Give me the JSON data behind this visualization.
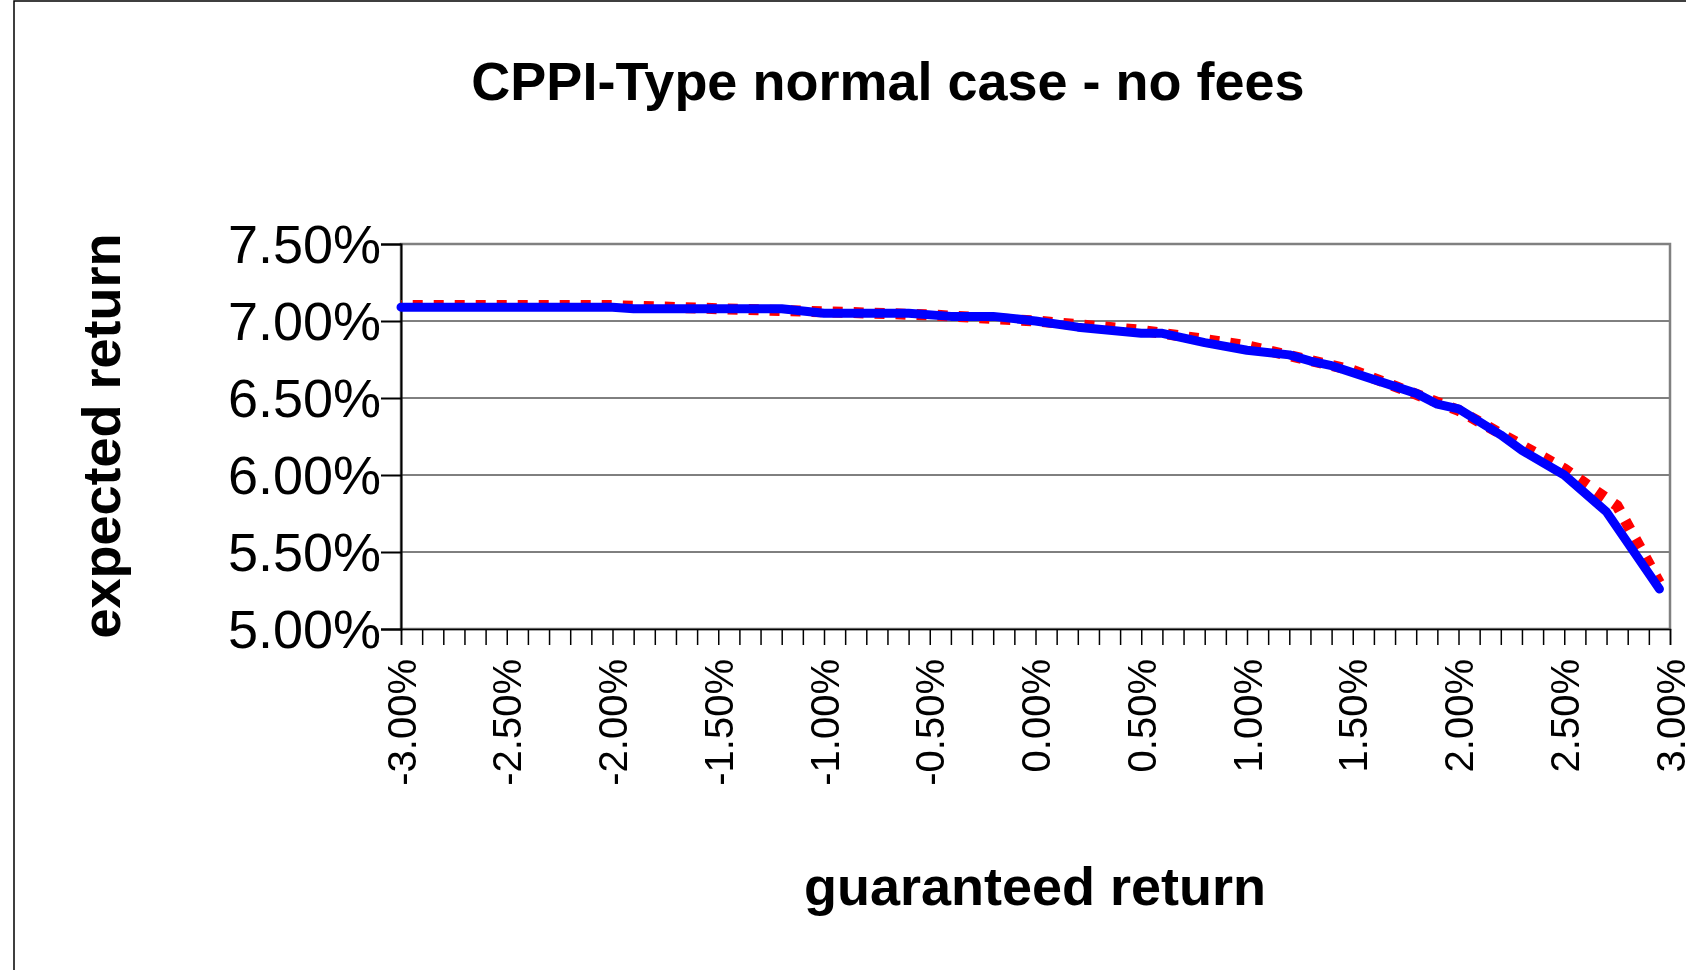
{
  "chart_data": {
    "type": "line",
    "title": "CPPI-Type normal case - no fees",
    "xlabel": "guaranteed return",
    "ylabel": "expected return",
    "xlim": [
      -3,
      3
    ],
    "xticks": [
      {
        "value": -3,
        "label": "-3.00%"
      },
      {
        "value": -2.9,
        "label": null
      },
      {
        "value": -2.8,
        "label": null
      },
      {
        "value": -2.7,
        "label": null
      },
      {
        "value": -2.6,
        "label": null
      },
      {
        "value": -2.5,
        "label": "-2.50%"
      },
      {
        "value": -2.4,
        "label": null
      },
      {
        "value": -2.3,
        "label": null
      },
      {
        "value": -2.2,
        "label": null
      },
      {
        "value": -2.1,
        "label": null
      },
      {
        "value": -2,
        "label": "-2.00%"
      },
      {
        "value": -1.9,
        "label": null
      },
      {
        "value": -1.8,
        "label": null
      },
      {
        "value": -1.7,
        "label": null
      },
      {
        "value": -1.6,
        "label": null
      },
      {
        "value": -1.5,
        "label": "-1.50%"
      },
      {
        "value": -1.4,
        "label": null
      },
      {
        "value": -1.3,
        "label": null
      },
      {
        "value": -1.2,
        "label": null
      },
      {
        "value": -1.1,
        "label": null
      },
      {
        "value": -1,
        "label": "-1.00%"
      },
      {
        "value": -0.9,
        "label": null
      },
      {
        "value": -0.8,
        "label": null
      },
      {
        "value": -0.7,
        "label": null
      },
      {
        "value": -0.6,
        "label": null
      },
      {
        "value": -0.5,
        "label": "-0.50%"
      },
      {
        "value": -0.4,
        "label": null
      },
      {
        "value": -0.3,
        "label": null
      },
      {
        "value": -0.2,
        "label": null
      },
      {
        "value": -0.1,
        "label": null
      },
      {
        "value": 0,
        "label": "0.00%"
      },
      {
        "value": 0.1,
        "label": null
      },
      {
        "value": 0.2,
        "label": null
      },
      {
        "value": 0.3,
        "label": null
      },
      {
        "value": 0.4,
        "label": null
      },
      {
        "value": 0.5,
        "label": "0.50%"
      },
      {
        "value": 0.6,
        "label": null
      },
      {
        "value": 0.7,
        "label": null
      },
      {
        "value": 0.8,
        "label": null
      },
      {
        "value": 0.9,
        "label": null
      },
      {
        "value": 1,
        "label": "1.00%"
      },
      {
        "value": 1.1,
        "label": null
      },
      {
        "value": 1.2,
        "label": null
      },
      {
        "value": 1.3,
        "label": null
      },
      {
        "value": 1.4,
        "label": null
      },
      {
        "value": 1.5,
        "label": "1.50%"
      },
      {
        "value": 1.6,
        "label": null
      },
      {
        "value": 1.7,
        "label": null
      },
      {
        "value": 1.8,
        "label": null
      },
      {
        "value": 1.9,
        "label": null
      },
      {
        "value": 2,
        "label": "2.00%"
      },
      {
        "value": 2.1,
        "label": null
      },
      {
        "value": 2.2,
        "label": null
      },
      {
        "value": 2.3,
        "label": null
      },
      {
        "value": 2.4,
        "label": null
      },
      {
        "value": 2.5,
        "label": "2.50%"
      },
      {
        "value": 2.6,
        "label": null
      },
      {
        "value": 2.7,
        "label": null
      },
      {
        "value": 2.8,
        "label": null
      },
      {
        "value": 2.9,
        "label": null
      },
      {
        "value": 3,
        "label": "3.00%"
      }
    ],
    "ylim": [
      5,
      7.5
    ],
    "yticks": [
      {
        "value": 5,
        "label": "5.00%"
      },
      {
        "value": 5.5,
        "label": "5.50%"
      },
      {
        "value": 6,
        "label": "6.00%"
      },
      {
        "value": 6.5,
        "label": "6.50%"
      },
      {
        "value": 7,
        "label": "7.00%"
      },
      {
        "value": 7.5,
        "label": "7.50%"
      }
    ],
    "grid": "y",
    "series": [
      {
        "color": "#ff0000",
        "line_style": "dotted",
        "x": [
          -3,
          -2,
          -1.5,
          -1,
          -0.5,
          0,
          0.5,
          1,
          1.5,
          2,
          2.5,
          2.75,
          2.95
        ],
        "values": [
          7.1,
          7.1,
          7.08,
          7.06,
          7.04,
          7.0,
          6.94,
          6.84,
          6.68,
          6.42,
          6.04,
          5.8,
          5.3
        ]
      },
      {
        "color": "#0000ff",
        "line_style": "solid",
        "x": [
          -3,
          -2,
          -1.9,
          -1.2,
          -1,
          -0.6,
          -0.4,
          -0.2,
          0,
          0.2,
          0.5,
          0.6,
          0.8,
          1,
          1.2,
          1.3,
          1.4,
          1.8,
          1.9,
          2,
          2.2,
          2.3,
          2.5,
          2.7,
          2.95
        ],
        "values": [
          7.09,
          7.09,
          7.08,
          7.08,
          7.05,
          7.05,
          7.03,
          7.03,
          7.0,
          6.96,
          6.92,
          6.92,
          6.86,
          6.81,
          6.78,
          6.74,
          6.71,
          6.53,
          6.46,
          6.43,
          6.26,
          6.16,
          6.0,
          5.76,
          5.26
        ]
      }
    ]
  }
}
